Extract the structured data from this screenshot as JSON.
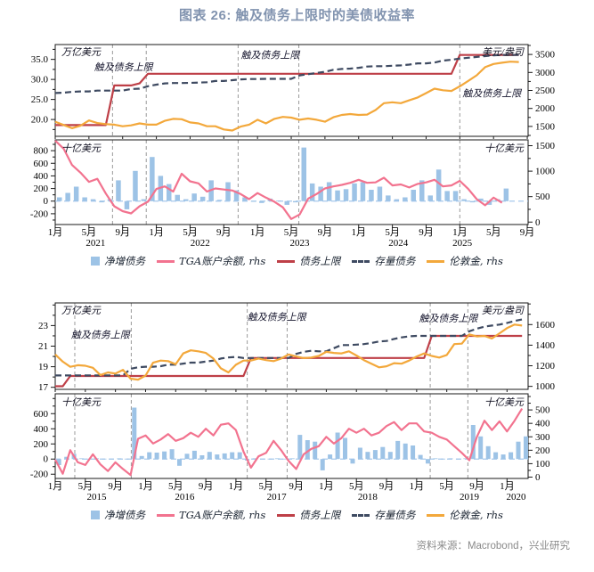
{
  "title": "图表 26: 触及债务上限时的美债收益率",
  "source": "资料来源：Macrobond，兴业研究",
  "colors": {
    "title": "#8193AF",
    "bar": "#9DC3E6",
    "tga": "#F2738F",
    "ceiling": "#BE3F47",
    "debt": "#3E4A61",
    "gold": "#F3A83B",
    "zero_line": "#A6C9EC",
    "gridline": "#9A9A9A",
    "frame": "#1a1a1a",
    "source_text": "#8A8A8A"
  },
  "legend": [
    {
      "label": "净增债务",
      "marker": "square",
      "color": "#9DC3E6"
    },
    {
      "label": "TGA账户余额, rhs",
      "marker": "line",
      "color": "#F2738F"
    },
    {
      "label": "债务上限",
      "marker": "line",
      "color": "#BE3F47"
    },
    {
      "label": "存量债务",
      "marker": "dash",
      "color": "#3E4A61"
    },
    {
      "label": "伦敦金, rhs",
      "marker": "line",
      "color": "#F3A83B"
    }
  ],
  "month_label_cycle": [
    "1月",
    "5月",
    "9月"
  ],
  "chart_data": {
    "type": "mixed-bar-line-dual-axis",
    "panels": [
      {
        "name": "2021-2025",
        "x_start": "2021-01",
        "tick_every_months": 4,
        "years": [
          {
            "label": "2021",
            "month": 4.8
          },
          {
            "label": "2022",
            "month": 17.2
          },
          {
            "label": "2023",
            "month": 29
          },
          {
            "label": "2024",
            "month": 40.7
          },
          {
            "label": "2025",
            "month": 48.3
          }
        ],
        "event_gridlines_months": [
          6.8,
          10.8,
          21.7,
          28.9,
          48.0
        ],
        "upper": {
          "left_axis": {
            "label": "万亿美元",
            "ticks": [
              20,
              25,
              30,
              35
            ],
            "range": [
              15.8,
              38.7
            ],
            "minor": 2.5,
            "decimals": 1
          },
          "right_axis": {
            "label": "美元/盎司",
            "ticks": [
              1500,
              2000,
              2500,
              3000,
              3500
            ],
            "range": [
              1225,
              3775
            ],
            "minor": 250,
            "decimals": 0
          },
          "annotations": [
            {
              "text": "触及债务上限",
              "month": 8.1,
              "value": 32.2
            },
            {
              "text": "触及债务上限",
              "month": 25.5,
              "value": 35.3
            },
            {
              "text": "触及债务上限",
              "month": 51.8,
              "value": 25.7
            }
          ],
          "series": {
            "ceiling": [
              18.6,
              18.6,
              18.6,
              18.6,
              18.6,
              18.6,
              18.6,
              28.5,
              28.5,
              28.5,
              29.0,
              31.4,
              31.4,
              31.4,
              31.4,
              31.4,
              31.4,
              31.4,
              31.4,
              31.4,
              31.4,
              31.4,
              31.4,
              31.4,
              31.4,
              31.4,
              31.4,
              31.4,
              31.4,
              31.4,
              31.4,
              31.4,
              31.4,
              31.4,
              31.4,
              31.4,
              31.4,
              31.4,
              31.4,
              31.4,
              31.4,
              31.4,
              31.4,
              31.4,
              31.4,
              31.4,
              31.4,
              31.4,
              36.1,
              36.1,
              36.1,
              36.1,
              36.1,
              36.1,
              36.1,
              36.1
            ],
            "debt": [
              26.6,
              26.7,
              26.9,
              27.0,
              27.0,
              27.2,
              27.2,
              27.2,
              27.2,
              27.6,
              27.7,
              28.3,
              28.7,
              29.0,
              29.1,
              29.1,
              29.15,
              29.2,
              29.3,
              29.6,
              29.6,
              29.8,
              30.0,
              30.1,
              30.1,
              30.15,
              30.15,
              30.15,
              30.15,
              31.0,
              31.3,
              31.6,
              31.9,
              32.4,
              32.6,
              32.7,
              32.9,
              33.2,
              33.3,
              33.3,
              33.4,
              33.5,
              33.7,
              34.0,
              34.0,
              34.2,
              34.7,
              34.9,
              35.2,
              35.4,
              35.6,
              35.8,
              36.0,
              36.1,
              36.1,
              36.1
            ],
            "gold": [
              1630,
              1540,
              1450,
              1520,
              1665,
              1595,
              1565,
              1550,
              1505,
              1530,
              1585,
              1550,
              1550,
              1655,
              1710,
              1700,
              1610,
              1585,
              1505,
              1505,
              1415,
              1385,
              1495,
              1550,
              1685,
              1585,
              1710,
              1765,
              1745,
              1685,
              1720,
              1685,
              1630,
              1755,
              1820,
              1845,
              1820,
              1830,
              1955,
              2145,
              2170,
              2145,
              2225,
              2305,
              2425,
              2550,
              2505,
              2485,
              2615,
              2765,
              2920,
              3145,
              3235,
              3270,
              3300,
              3290
            ]
          }
        },
        "lower": {
          "left_axis": {
            "label": "十亿美元",
            "ticks": [
              -200,
              0,
              200,
              400,
              600,
              800
            ],
            "range": [
              -371,
              971
            ],
            "minor": 100,
            "decimals": 0
          },
          "right_axis": {
            "label": "十亿美元",
            "ticks": [
              0,
              500,
              1000,
              1500
            ],
            "range": [
              -48,
              1614
            ],
            "minor": 250,
            "decimals": 0
          },
          "series": {
            "bars": [
              60,
              130,
              230,
              60,
              30,
              -20,
              30,
              330,
              -130,
              480,
              30,
              700,
              400,
              270,
              100,
              30,
              120,
              70,
              330,
              20,
              300,
              170,
              60,
              -10,
              -30,
              40,
              10,
              -60,
              -20,
              850,
              280,
              230,
              300,
              170,
              190,
              280,
              300,
              180,
              230,
              90,
              30,
              60,
              180,
              330,
              90,
              500,
              160,
              160,
              30,
              -20,
              40,
              -60,
              30,
              200
            ],
            "tga": [
              1600,
              1440,
              1120,
              970,
              790,
              850,
              560,
              310,
              215,
              170,
              310,
              400,
              650,
              700,
              600,
              950,
              800,
              760,
              600,
              660,
              640,
              620,
              550,
              450,
              570,
              480,
              400,
              290,
              60,
              150,
              460,
              550,
              660,
              700,
              730,
              770,
              830,
              770,
              780,
              870,
              720,
              740,
              680,
              750,
              780,
              830,
              700,
              720,
              810,
              650,
              450,
              330,
              480,
              380
            ]
          }
        }
      },
      {
        "name": "2015-2020",
        "x_start": "2015-01",
        "tick_every_months": 4,
        "years": [
          {
            "label": "2015",
            "month": 5.5
          },
          {
            "label": "2016",
            "month": 17.2
          },
          {
            "label": "2017",
            "month": 29.4
          },
          {
            "label": "2018",
            "month": 41.5
          },
          {
            "label": "2019",
            "month": 55
          },
          {
            "label": "2020",
            "month": 61.2
          }
        ],
        "event_gridlines_months": [
          2.6,
          10.1,
          25.5,
          30.8,
          49.8,
          54.8
        ],
        "upper": {
          "left_axis": {
            "label": "万亿美元",
            "ticks": [
              17,
              19,
              21,
              23
            ],
            "range": [
              16.8,
              25.2
            ],
            "minor": 1,
            "decimals": 0
          },
          "right_axis": {
            "label": "美元/盎司",
            "ticks": [
              1000,
              1200,
              1400,
              1600
            ],
            "range": [
              971,
              1810
            ],
            "minor": 100,
            "decimals": 0
          },
          "annotations": [
            {
              "text": "触及债务上限",
              "month": 6.0,
              "value": 21.8
            },
            {
              "text": "触及债务上限",
              "month": 29.4,
              "value": 23.5
            },
            {
              "text": "触及债务上限",
              "month": 52.2,
              "value": 23.4
            }
          ],
          "series": {
            "ceiling": [
              17.1,
              17.1,
              18.1,
              18.1,
              18.1,
              18.1,
              18.1,
              18.1,
              18.1,
              18.1,
              18.1,
              18.1,
              18.1,
              18.1,
              18.1,
              18.1,
              18.1,
              18.1,
              18.1,
              18.1,
              18.1,
              18.1,
              18.1,
              18.1,
              18.1,
              18.1,
              19.85,
              19.85,
              19.85,
              19.85,
              19.85,
              19.85,
              19.85,
              19.85,
              19.85,
              19.85,
              19.85,
              19.85,
              19.85,
              19.85,
              19.85,
              19.85,
              19.85,
              19.85,
              19.85,
              19.85,
              19.85,
              19.85,
              19.85,
              19.85,
              22.0,
              22.0,
              22.0,
              22.0,
              22.0,
              22.0,
              22.0,
              22.0,
              22.0,
              22.0,
              22.0,
              22.0,
              22.0
            ],
            "debt": [
              18.15,
              18.15,
              18.15,
              18.15,
              18.15,
              18.15,
              18.15,
              18.15,
              18.15,
              18.15,
              18.8,
              18.95,
              19.0,
              19.0,
              19.05,
              19.2,
              19.2,
              19.3,
              19.4,
              19.4,
              19.5,
              19.6,
              19.8,
              19.9,
              19.95,
              19.85,
              19.85,
              19.85,
              19.85,
              19.85,
              19.85,
              19.85,
              20.25,
              20.45,
              20.55,
              20.5,
              20.5,
              20.8,
              21.1,
              21.1,
              21.15,
              21.2,
              21.3,
              21.45,
              21.5,
              21.7,
              21.85,
              21.95,
              22.0,
              22.0,
              22.0,
              22.0,
              22.0,
              22.0,
              22.0,
              22.45,
              22.7,
              22.9,
              23.0,
              23.1,
              23.25,
              23.45,
              23.6
            ],
            "gold": [
              1310,
              1240,
              1190,
              1205,
              1200,
              1180,
              1110,
              1135,
              1125,
              1160,
              1075,
              1065,
              1105,
              1230,
              1250,
              1245,
              1215,
              1320,
              1350,
              1340,
              1325,
              1270,
              1175,
              1135,
              1210,
              1250,
              1250,
              1270,
              1255,
              1245,
              1270,
              1310,
              1290,
              1275,
              1280,
              1295,
              1335,
              1325,
              1320,
              1340,
              1300,
              1255,
              1220,
              1185,
              1195,
              1225,
              1220,
              1250,
              1290,
              1320,
              1295,
              1280,
              1305,
              1410,
              1415,
              1505,
              1485,
              1490,
              1465,
              1515,
              1565,
              1600,
              1590
            ]
          }
        },
        "lower": {
          "left_axis": {
            "label": "十亿美元",
            "ticks": [
              -200,
              0,
              200,
              400,
              600
            ],
            "range": [
              -256,
              862
            ],
            "minor": 100,
            "decimals": 0
          },
          "right_axis": {
            "label": "十亿美元",
            "ticks": [
              0,
              100,
              200,
              300,
              400,
              500
            ],
            "range": [
              -10,
              620
            ],
            "minor": 50,
            "decimals": 0
          },
          "series": {
            "bars": [
              -80,
              30,
              70,
              10,
              5,
              10,
              5,
              5,
              10,
              5,
              680,
              40,
              90,
              85,
              100,
              130,
              -90,
              70,
              110,
              50,
              95,
              60,
              75,
              90,
              90,
              -20,
              10,
              5,
              5,
              10,
              5,
              10,
              320,
              250,
              230,
              -150,
              60,
              350,
              280,
              -60,
              150,
              95,
              120,
              160,
              95,
              240,
              205,
              180,
              55,
              -60,
              10,
              5,
              10,
              5,
              10,
              450,
              300,
              170,
              90,
              60,
              90,
              230,
              300
            ],
            "tga": [
              130,
              25,
              200,
              110,
              90,
              170,
              95,
              45,
              110,
              60,
              15,
              285,
              310,
              250,
              280,
              320,
              270,
              290,
              330,
              300,
              360,
              310,
              390,
              400,
              350,
              190,
              70,
              155,
              180,
              270,
              200,
              120,
              60,
              170,
              210,
              230,
              300,
              250,
              290,
              360,
              330,
              360,
              310,
              330,
              380,
              410,
              350,
              400,
              400,
              340,
              330,
              300,
              280,
              230,
              180,
              125,
              300,
              420,
              350,
              415,
              340,
              420,
              510
            ]
          }
        }
      }
    ]
  }
}
